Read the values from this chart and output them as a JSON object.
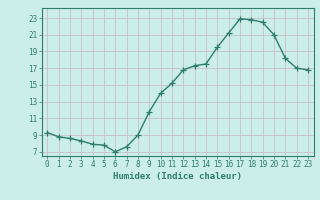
{
  "x": [
    0,
    1,
    2,
    3,
    4,
    5,
    6,
    7,
    8,
    9,
    10,
    11,
    12,
    13,
    14,
    15,
    16,
    17,
    18,
    19,
    20,
    21,
    22,
    23
  ],
  "y": [
    9.3,
    8.8,
    8.6,
    8.3,
    7.9,
    7.8,
    7.0,
    7.6,
    9.0,
    11.8,
    14.0,
    15.2,
    16.8,
    17.3,
    17.5,
    19.5,
    21.2,
    22.9,
    22.8,
    22.5,
    21.0,
    18.2,
    17.0,
    16.8
  ],
  "line_color": "#2e7d6e",
  "marker": "+",
  "markersize": 4,
  "linewidth": 1.0,
  "xlabel": "Humidex (Indice chaleur)",
  "xlim": [
    -0.5,
    23.5
  ],
  "ylim": [
    6.5,
    24.2
  ],
  "yticks": [
    7,
    9,
    11,
    13,
    15,
    17,
    19,
    21,
    23
  ],
  "xtick_labels": [
    "0",
    "1",
    "2",
    "3",
    "4",
    "5",
    "6",
    "7",
    "8",
    "9",
    "10",
    "11",
    "12",
    "13",
    "14",
    "15",
    "16",
    "17",
    "18",
    "19",
    "20",
    "21",
    "22",
    "23"
  ],
  "bg_color": "#cceee8",
  "grid_color": "#c8c0c8",
  "label_fontsize": 6.5,
  "tick_fontsize": 5.5
}
